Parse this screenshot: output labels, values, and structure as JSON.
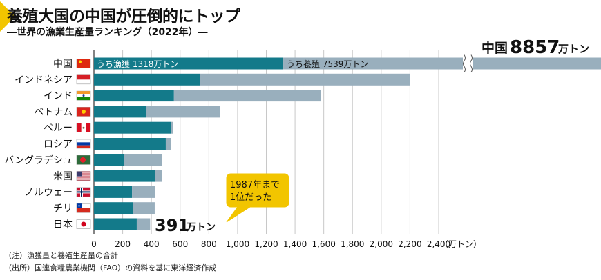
{
  "header": {
    "title": "養殖大国の中国が圧倒的にトップ",
    "subtitle": "―世界の漁業生産量ランキング（2022年）―"
  },
  "notes": [
    "（注）漁獲量と養殖生産量の合計",
    "（出所）国連食糧農業機関（FAO）の資料を基に東洋経済作成"
  ],
  "colors": {
    "capture": "#137a8a",
    "aquaculture": "#99afbd",
    "accent": "#f2c500",
    "grid": "#c8c8c8"
  },
  "chart_data": {
    "type": "bar",
    "orientation": "horizontal",
    "stacked": true,
    "title": "養殖大国の中国が圧倒的にトップ",
    "subtitle": "世界の漁業生産量ランキング（2022年）",
    "unit_label": "（万トン）",
    "xlim": [
      0,
      2400
    ],
    "xticks": [
      0,
      200,
      400,
      600,
      800,
      1000,
      1200,
      1400,
      1600,
      1800,
      2000,
      2200,
      2400
    ],
    "xtick_labels": [
      "0",
      "200",
      "400",
      "600",
      "800",
      "1,000",
      "1,200",
      "1,400",
      "1,600",
      "1,800",
      "2,000",
      "2,200",
      "2,400"
    ],
    "grid": true,
    "axis_break_on": "中国",
    "categories": [
      "中国",
      "インドネシア",
      "インド",
      "ベトナム",
      "ペルー",
      "ロシア",
      "バングラデシュ",
      "米国",
      "ノルウェー",
      "チリ",
      "日本"
    ],
    "flags": [
      "china-flag",
      "indonesia-flag",
      "india-flag",
      "vietnam-flag",
      "peru-flag",
      "russia-flag",
      "bangladesh-flag",
      "usa-flag",
      "norway-flag",
      "chile-flag",
      "japan-flag"
    ],
    "series": [
      {
        "name": "うち漁獲",
        "values": [
          1318,
          740,
          557,
          361,
          539,
          500,
          207,
          428,
          265,
          274,
          298
        ]
      },
      {
        "name": "うち養殖",
        "values": [
          7539,
          1460,
          1021,
          515,
          14,
          34,
          269,
          48,
          163,
          149,
          93
        ]
      }
    ],
    "totals": [
      8857,
      2200,
      1578,
      876,
      553,
      534,
      476,
      476,
      428,
      423,
      391
    ],
    "annotations": {
      "china_capture": "うち漁獲 1318万トン",
      "china_aquaculture": "うち養殖 7539万トン",
      "china_total_name": "中国",
      "china_total_value": "8857",
      "china_total_unit": "万トン",
      "japan_total_value": "391",
      "japan_total_unit": "万トン",
      "callout_line1": "1987年まで",
      "callout_line2": "1位だった"
    }
  }
}
